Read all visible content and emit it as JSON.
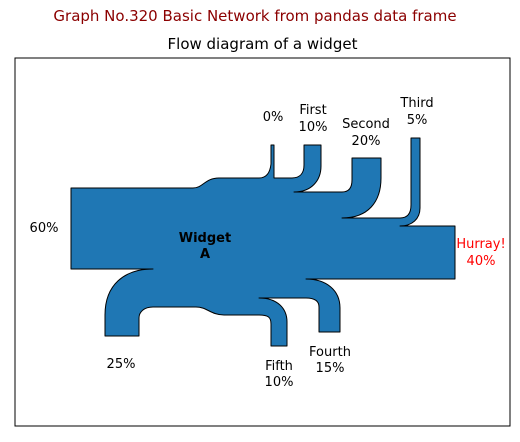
{
  "suptitle": "Graph No.320 Basic Network from pandas data frame",
  "chart_data": {
    "type": "sankey",
    "title": "Flow diagram of a widget",
    "center_label": [
      "Widget",
      "A"
    ],
    "flow_color": "#1f77b4",
    "outline_color": "#000000",
    "flows": [
      {
        "name": "",
        "value": 60,
        "label": [
          "60%"
        ],
        "direction": "input",
        "color": "#000000"
      },
      {
        "name": "",
        "value": 25,
        "label": [
          "25%"
        ],
        "direction": "output-down",
        "color": "#000000"
      },
      {
        "name": "",
        "value": 0,
        "label": [
          "0%"
        ],
        "direction": "output-up",
        "color": "#000000"
      },
      {
        "name": "First",
        "value": 10,
        "label": [
          "First",
          "10%"
        ],
        "direction": "output-up",
        "color": "#000000"
      },
      {
        "name": "Second",
        "value": 20,
        "label": [
          "Second",
          "20%"
        ],
        "direction": "output-up",
        "color": "#000000"
      },
      {
        "name": "Third",
        "value": 5,
        "label": [
          "Third",
          "5%"
        ],
        "direction": "output-up",
        "color": "#000000"
      },
      {
        "name": "Hurray!",
        "value": 40,
        "label": [
          "Hurray!",
          "40%"
        ],
        "direction": "output",
        "color": "#ff0000"
      },
      {
        "name": "Fourth",
        "value": 15,
        "label": [
          "Fourth",
          "15%"
        ],
        "direction": "output-down",
        "color": "#000000"
      },
      {
        "name": "Fifth",
        "value": 10,
        "label": [
          "Fifth",
          "10%"
        ],
        "direction": "output-down",
        "color": "#000000"
      }
    ]
  }
}
